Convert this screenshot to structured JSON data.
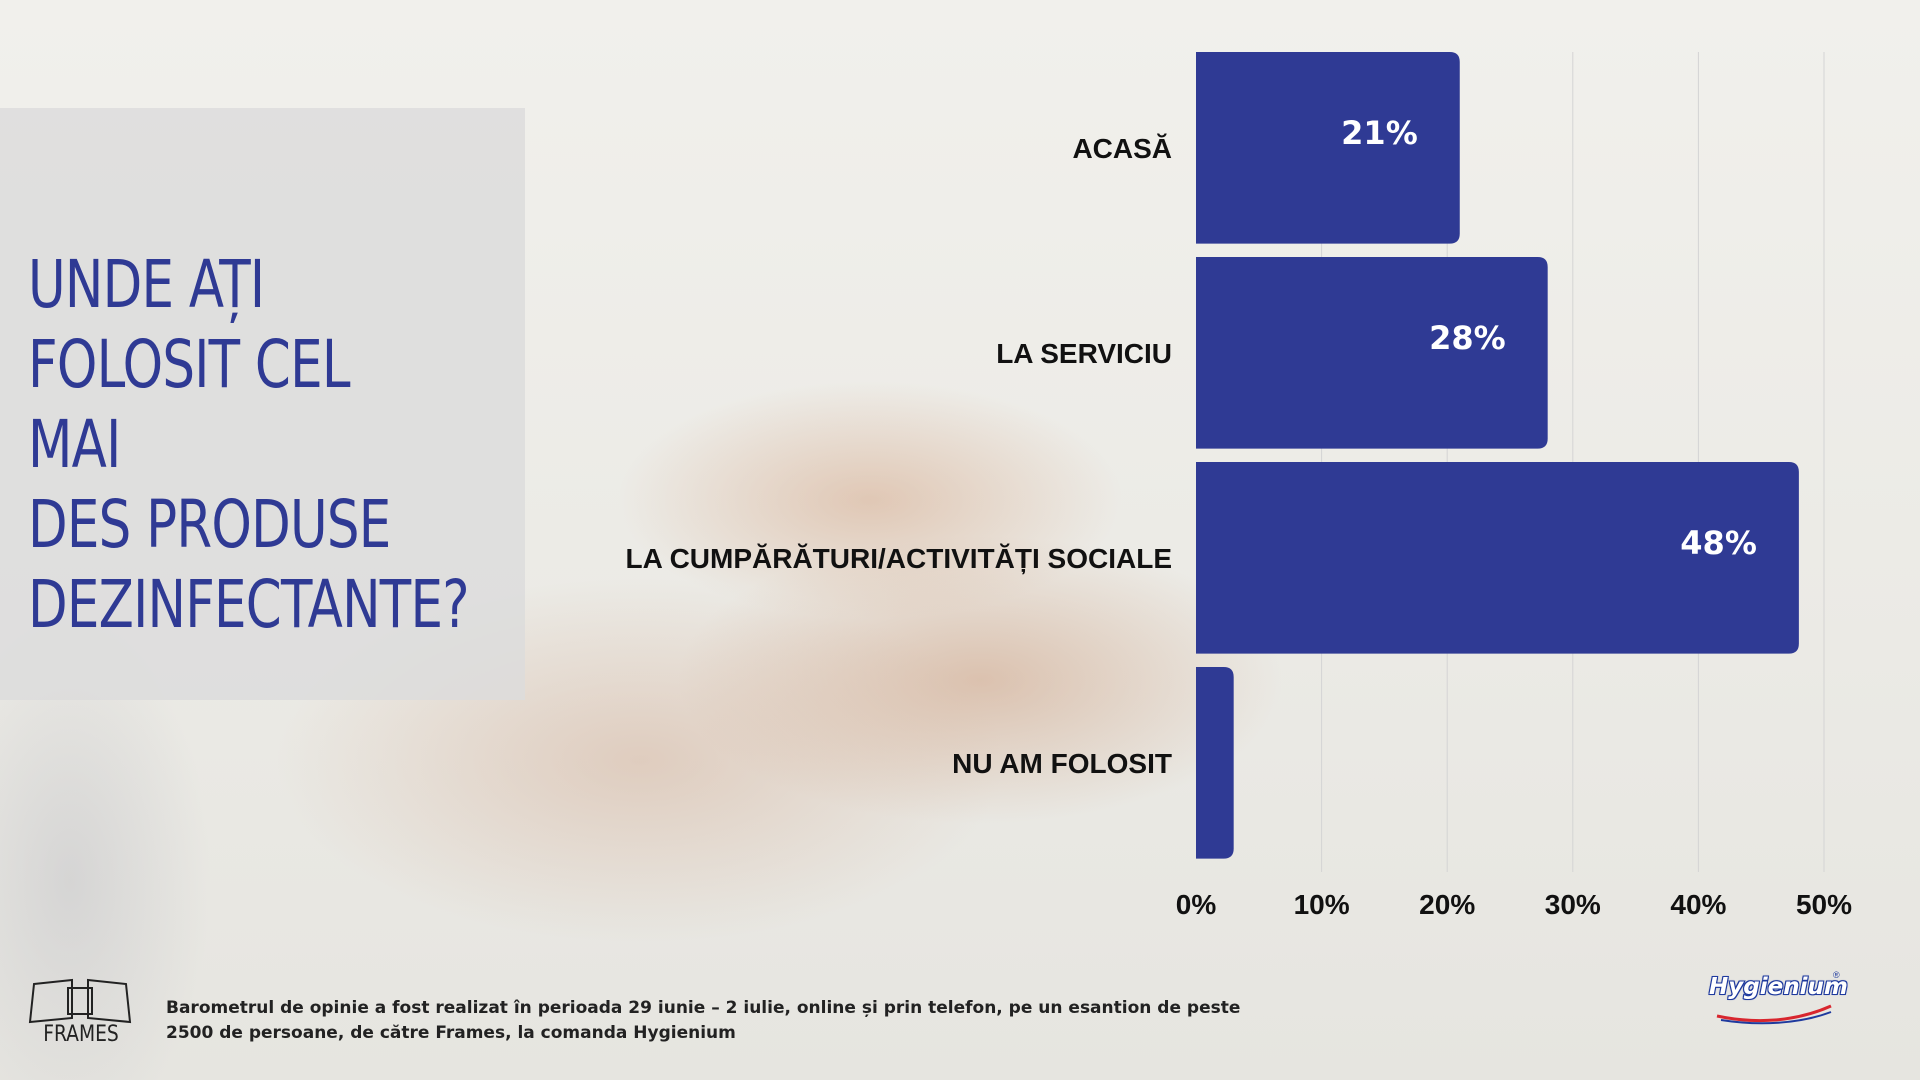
{
  "title": "UNDE AȚI\nFOLOSIT CEL MAI\nDES PRODUSE\nDEZINFECTANTE?",
  "chart_data": {
    "type": "bar",
    "orientation": "horizontal",
    "categories": [
      "ACASĂ",
      "LA SERVICIU",
      "LA CUMPĂRĂTURI/ACTIVITĂȚI SOCIALE",
      "NU AM FOLOSIT"
    ],
    "values": [
      21,
      28,
      48,
      3
    ],
    "data_labels": [
      "21%",
      "28%",
      "48%",
      ""
    ],
    "xlim": [
      0,
      50
    ],
    "ticks": [
      0,
      10,
      20,
      30,
      40,
      50
    ],
    "tick_labels": [
      "0%",
      "10%",
      "20%",
      "30%",
      "40%",
      "50%"
    ],
    "grid": true,
    "bar_color": "#2f3a94"
  },
  "footnote": "Barometrul de opinie a fost realizat în perioada 29 iunie – 2 iulie, online și prin telefon, pe un esantion de peste 2500 de persoane, de către Frames, la comanda Hygienium",
  "logos": {
    "left": "FRAMES",
    "right": "Hygienium",
    "right_mark": "®"
  },
  "colors": {
    "accent": "#2f3a94",
    "grid": "#d4d4d4"
  }
}
